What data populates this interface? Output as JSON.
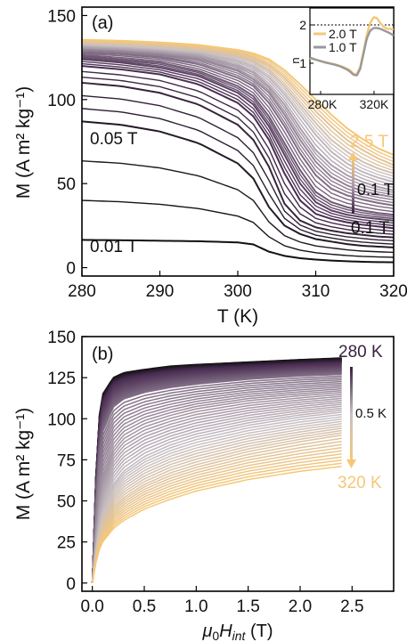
{
  "chart_data": [
    {
      "type": "line",
      "panel_label": "(a)",
      "xlabel": "T (K)",
      "ylabel": "M (A m² kg⁻¹)",
      "xlim": [
        280,
        320
      ],
      "ylim": [
        -5,
        155
      ],
      "xticks": [
        280,
        290,
        300,
        310,
        320
      ],
      "yticks": [
        0,
        50,
        100,
        150
      ],
      "grid": false,
      "annotations": {
        "top_field": "2.5 T",
        "step_upper": "0.1 T",
        "step_lower": "0.1 T",
        "low_label_1": "0.05 T",
        "low_label_2": "0.01 T"
      },
      "x": [
        280,
        285,
        290,
        295,
        300,
        302,
        304,
        306,
        308,
        310,
        312,
        314,
        316,
        318,
        320
      ],
      "series": [
        {
          "field_T": 0.01,
          "values": [
            16.5,
            16.3,
            16.0,
            15.7,
            15.0,
            13.8,
            9.5,
            7.0,
            5.6,
            4.8,
            4.2,
            3.8,
            3.5,
            3.3,
            3.2
          ]
        },
        {
          "field_T": 0.05,
          "values": [
            87,
            85,
            81,
            74,
            62,
            53,
            36,
            25,
            20,
            17,
            15.5,
            14,
            13,
            12.5,
            12
          ]
        },
        {
          "field_T": 0.1,
          "values": [
            110,
            108,
            104,
            97,
            85,
            76,
            60,
            38,
            28,
            24,
            22,
            20.5,
            19.5,
            18.5,
            18
          ]
        },
        {
          "field_T": 0.2,
          "values": [
            120,
            118,
            115,
            109,
            98,
            90,
            76,
            56,
            40,
            32,
            29,
            27,
            25.5,
            24.5,
            23.5
          ]
        },
        {
          "field_T": 0.3,
          "values": [
            124,
            122,
            119,
            114,
            104,
            97,
            84,
            67,
            50,
            39,
            34,
            31.5,
            30,
            29,
            28
          ]
        },
        {
          "field_T": 0.4,
          "values": [
            126,
            124,
            122,
            117,
            108,
            102,
            90,
            74,
            58,
            45,
            39,
            36,
            34,
            32.5,
            31.5
          ]
        },
        {
          "field_T": 0.6,
          "values": [
            128,
            127,
            125,
            121,
            113,
            108,
            98,
            84,
            68,
            55,
            47,
            43,
            40.5,
            38.5,
            37
          ]
        },
        {
          "field_T": 0.8,
          "values": [
            130,
            129,
            127,
            124,
            117,
            112,
            104,
            91,
            76,
            63,
            54,
            49,
            45.5,
            43.5,
            42
          ]
        },
        {
          "field_T": 1.0,
          "values": [
            131,
            130,
            128.5,
            126,
            120,
            116,
            108,
            97,
            83,
            70,
            61,
            55,
            51,
            48,
            46
          ]
        },
        {
          "field_T": 1.3,
          "values": [
            132.5,
            131.5,
            130,
            128,
            123,
            119.5,
            113,
            103,
            91,
            79,
            69,
            62,
            57,
            53.5,
            51
          ]
        },
        {
          "field_T": 1.6,
          "values": [
            133.5,
            132.5,
            131.5,
            129.5,
            125.5,
            122.5,
            117,
            108,
            97,
            86,
            76,
            69,
            63,
            59,
            56
          ]
        },
        {
          "field_T": 2.0,
          "values": [
            134.5,
            134,
            133,
            131,
            127.5,
            125,
            120.5,
            113,
            103,
            93,
            84,
            76,
            70,
            65,
            61
          ]
        },
        {
          "field_T": 2.5,
          "values": [
            135.5,
            135,
            134,
            132.5,
            129.5,
            127.5,
            124,
            117.5,
            109,
            100,
            91,
            83,
            76.5,
            71,
            67
          ]
        }
      ]
    },
    {
      "type": "line",
      "role": "inset",
      "ylabel": "n",
      "xtick_labels": [
        "280K",
        "320K"
      ],
      "yticks": [
        1,
        2
      ],
      "reference_line": 2,
      "legend": [
        "2.0 T",
        "1.0 T"
      ],
      "legend_placement": "top-left",
      "x": [
        280,
        283,
        286,
        289,
        292,
        295,
        298,
        300,
        302,
        304,
        306,
        308,
        310,
        312,
        314,
        316,
        318,
        320,
        322,
        324,
        326,
        328,
        330
      ],
      "series": [
        {
          "name": "2.0 T",
          "values": [
            1.12,
            1.1,
            1.06,
            1.03,
            1.0,
            0.97,
            0.93,
            0.9,
            0.86,
            0.82,
            0.72,
            0.72,
            0.9,
            1.3,
            1.75,
            2.05,
            2.2,
            2.18,
            2.05,
            1.95,
            1.9,
            1.9,
            1.88
          ]
        },
        {
          "name": "1.0 T",
          "values": [
            1.15,
            1.1,
            1.06,
            1.02,
            0.99,
            0.96,
            0.92,
            0.88,
            0.84,
            0.78,
            0.7,
            0.68,
            0.85,
            1.25,
            1.65,
            1.85,
            1.92,
            1.92,
            1.9,
            1.86,
            1.82,
            1.78,
            1.72
          ]
        }
      ]
    },
    {
      "type": "line",
      "panel_label": "(b)",
      "xlabel": "μ0Hint (T)",
      "ylabel": "M (A m² kg⁻¹)",
      "xlim": [
        -0.1,
        2.9
      ],
      "ylim": [
        -5,
        150
      ],
      "xticks": [
        0.0,
        0.5,
        1.0,
        1.5,
        2.0,
        2.5
      ],
      "yticks": [
        0,
        25,
        50,
        75,
        100,
        125,
        150
      ],
      "grid": false,
      "annotations": {
        "top_temp": "280 K",
        "step": "0.5 K",
        "bottom_temp": "320 K"
      },
      "x": [
        0.0,
        0.05,
        0.1,
        0.2,
        0.3,
        0.5,
        0.75,
        1.0,
        1.5,
        2.0,
        2.4
      ],
      "series": [
        {
          "temperature_K": 280,
          "values": [
            0,
            95,
            115,
            125,
            128,
            130,
            132,
            133,
            134.5,
            136,
            137
          ]
        },
        {
          "temperature_K": 290,
          "values": [
            0,
            90,
            110,
            121,
            124,
            126.5,
            128.5,
            130,
            131.5,
            133,
            134
          ]
        },
        {
          "temperature_K": 300,
          "values": [
            0,
            70,
            92,
            107,
            112,
            116,
            119,
            121,
            124,
            126,
            127
          ]
        },
        {
          "temperature_K": 305,
          "values": [
            0,
            45,
            65,
            82,
            90,
            97,
            102,
            106,
            111,
            114,
            116
          ]
        },
        {
          "temperature_K": 310,
          "values": [
            0,
            30,
            45,
            60,
            68,
            77,
            84,
            89,
            96,
            101,
            104
          ]
        },
        {
          "temperature_K": 315,
          "values": [
            0,
            24,
            35,
            46,
            52,
            60,
            67,
            72,
            80,
            86,
            90
          ]
        },
        {
          "temperature_K": 320,
          "values": [
            0,
            18,
            25,
            33,
            38,
            45,
            51,
            56,
            63,
            68,
            71
          ]
        }
      ]
    }
  ]
}
